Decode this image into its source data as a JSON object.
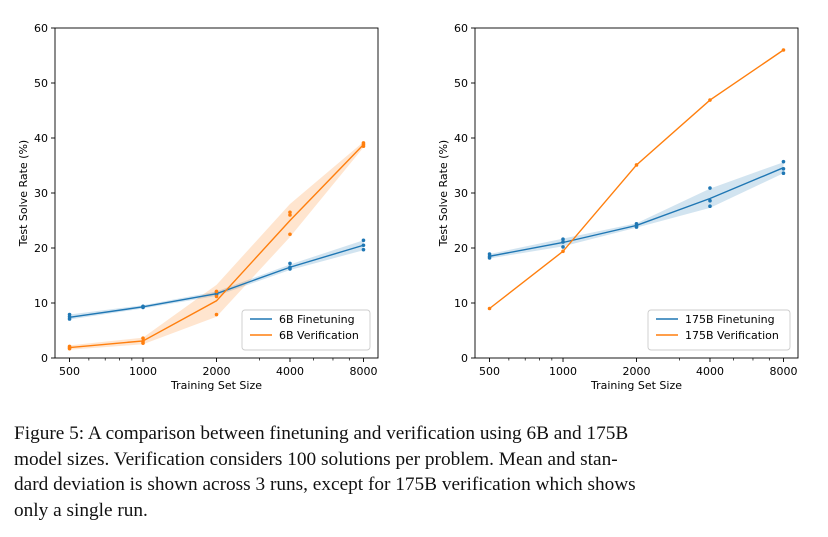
{
  "chart_data": [
    {
      "type": "line",
      "title": "",
      "xlabel": "Training Set Size",
      "ylabel": "Test Solve Rate (%)",
      "xscale": "log",
      "x_ticks": [
        500,
        1000,
        2000,
        4000,
        8000
      ],
      "y_ticks": [
        0,
        10,
        20,
        30,
        40,
        50,
        60
      ],
      "ylim": [
        0,
        60
      ],
      "legend_position": "lower-right",
      "grid": false,
      "series": [
        {
          "name": "6B Finetuning",
          "color": "#1f77b4",
          "x": [
            500,
            1000,
            2000,
            4000,
            8000
          ],
          "mean": [
            7.4,
            9.3,
            11.7,
            16.5,
            20.5
          ],
          "band": [
            [
              7.0,
              7.9
            ],
            [
              9.0,
              9.6
            ],
            [
              11.3,
              12.1
            ],
            [
              16.0,
              17.0
            ],
            [
              19.6,
              21.4
            ]
          ],
          "runs": [
            [
              7.1,
              7.5,
              7.9
            ],
            [
              9.2,
              9.3,
              9.4
            ],
            [
              11.5,
              11.7,
              12.0
            ],
            [
              16.2,
              16.5,
              17.2
            ],
            [
              19.7,
              20.5,
              21.4
            ]
          ]
        },
        {
          "name": "6B Verification",
          "color": "#ff7f0e",
          "x": [
            500,
            1000,
            2000,
            4000,
            8000
          ],
          "mean": [
            1.9,
            3.1,
            10.4,
            25.0,
            38.8
          ],
          "band": [
            [
              1.5,
              2.3
            ],
            [
              2.5,
              3.7
            ],
            [
              7.5,
              13.3
            ],
            [
              22.0,
              28.0
            ],
            [
              38.3,
              39.3
            ]
          ],
          "runs": [
            [
              1.7,
              1.9,
              2.1
            ],
            [
              2.7,
              3.0,
              3.6
            ],
            [
              7.9,
              11.2,
              12.1
            ],
            [
              22.5,
              26.0,
              26.5
            ],
            [
              38.5,
              38.8,
              39.1
            ]
          ]
        }
      ]
    },
    {
      "type": "line",
      "title": "",
      "xlabel": "Training Set Size",
      "ylabel": "Test Solve Rate (%)",
      "xscale": "log",
      "x_ticks": [
        500,
        1000,
        2000,
        4000,
        8000
      ],
      "y_ticks": [
        0,
        10,
        20,
        30,
        40,
        50,
        60
      ],
      "ylim": [
        0,
        60
      ],
      "legend_position": "lower-right",
      "grid": false,
      "series": [
        {
          "name": "175B Finetuning",
          "color": "#1f77b4",
          "x": [
            500,
            1000,
            2000,
            4000,
            8000
          ],
          "mean": [
            18.5,
            21.0,
            24.1,
            29.0,
            34.6
          ],
          "band": [
            [
              18.1,
              18.9
            ],
            [
              20.3,
              21.7
            ],
            [
              23.7,
              24.5
            ],
            [
              27.3,
              30.8
            ],
            [
              33.6,
              35.6
            ]
          ],
          "runs": [
            [
              18.2,
              18.5,
              18.9
            ],
            [
              20.2,
              21.1,
              21.6
            ],
            [
              23.8,
              24.1,
              24.4
            ],
            [
              27.6,
              28.6,
              30.9
            ],
            [
              33.6,
              34.4,
              35.7
            ]
          ]
        },
        {
          "name": "175B Verification",
          "color": "#ff7f0e",
          "x": [
            500,
            1000,
            2000,
            4000,
            8000
          ],
          "mean": [
            9.0,
            19.4,
            35.1,
            46.9,
            56.0
          ],
          "band": null,
          "runs": [
            [
              9.0
            ],
            [
              19.4
            ],
            [
              35.1
            ],
            [
              46.9
            ],
            [
              56.0
            ]
          ]
        }
      ]
    }
  ],
  "caption": {
    "line1": "Figure 5: A comparison between finetuning and verification using 6B and 175B",
    "line2": "model sizes. Verification considers 100 solutions per problem. Mean and stan-",
    "line3": "dard deviation is shown across 3 runs, except for 175B verification which shows",
    "line4": "only a single run."
  }
}
